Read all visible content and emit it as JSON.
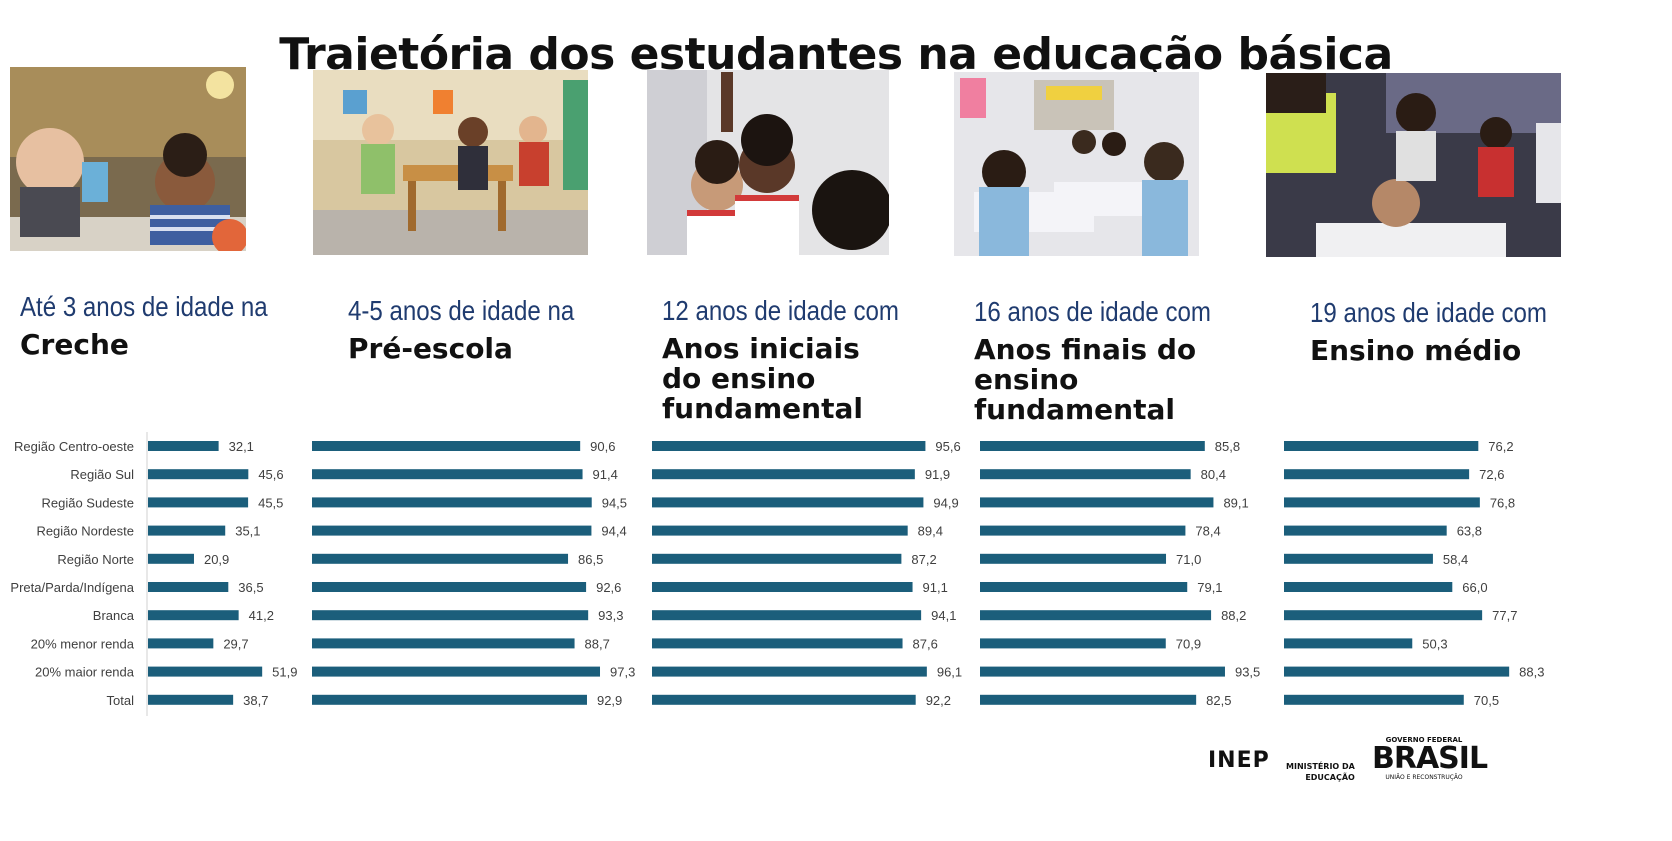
{
  "title": "Trajetória dos estudantes na educação básica",
  "columns": [
    {
      "subtitle": "Até 3 anos de idade na",
      "heading": "Creche",
      "photo": "toddlers-playing-photo"
    },
    {
      "subtitle": "4-5 anos de idade na",
      "heading": "Pré-escola",
      "photo": "preschool-classroom-photo"
    },
    {
      "subtitle": "12 anos de idade com",
      "heading": "Anos iniciais\ndo ensino\nfundamental",
      "photo": "smiling-children-photo"
    },
    {
      "subtitle": "16 anos de idade com",
      "heading": "Anos finais do\nensino\nfundamental",
      "photo": "students-writing-photo"
    },
    {
      "subtitle": "19 anos de idade com",
      "heading": "Ensino médio",
      "photo": "student-exam-photo"
    }
  ],
  "chart_data": {
    "type": "bar",
    "orientation": "horizontal",
    "categories": [
      "Região Centro-oeste",
      "Região Sul",
      "Região Sudeste",
      "Região Nordeste",
      "Região Norte",
      "Preta/Parda/Indígena",
      "Branca",
      "20% menor renda",
      "20% maior renda",
      "Total"
    ],
    "series": [
      {
        "name": "Creche",
        "values": [
          32.1,
          45.6,
          45.5,
          35.1,
          20.9,
          36.5,
          41.2,
          29.7,
          51.9,
          38.7
        ],
        "labels": [
          "32,1",
          "45,6",
          "45,5",
          "35,1",
          "20,9",
          "36,5",
          "41,2",
          "29,7",
          "51,9",
          "38,7"
        ]
      },
      {
        "name": "Pré-escola",
        "values": [
          90.6,
          91.4,
          94.5,
          94.4,
          86.5,
          92.6,
          93.3,
          88.7,
          97.3,
          92.9
        ],
        "labels": [
          "90,6",
          "91,4",
          "94,5",
          "94,4",
          "86,5",
          "92,6",
          "93,3",
          "88,7",
          "97,3",
          "92,9"
        ]
      },
      {
        "name": "Anos iniciais do ensino fundamental",
        "values": [
          95.6,
          91.9,
          94.9,
          89.4,
          87.2,
          91.1,
          94.1,
          87.6,
          96.1,
          92.2
        ],
        "labels": [
          "95,6",
          "91,9",
          "94,9",
          "89,4",
          "87,2",
          "91,1",
          "94,1",
          "87,6",
          "96,1",
          "92,2"
        ]
      },
      {
        "name": "Anos finais do ensino fundamental",
        "values": [
          85.8,
          80.4,
          89.1,
          78.4,
          71.0,
          79.1,
          88.2,
          70.9,
          93.5,
          82.5
        ],
        "labels": [
          "85,8",
          "80,4",
          "89,1",
          "78,4",
          "71,0",
          "79,1",
          "88,2",
          "70,9",
          "93,5",
          "82,5"
        ]
      },
      {
        "name": "Ensino médio",
        "values": [
          76.2,
          72.6,
          76.8,
          63.8,
          58.4,
          66.0,
          77.7,
          50.3,
          88.3,
          70.5
        ],
        "labels": [
          "76,2",
          "72,6",
          "76,8",
          "63,8",
          "58,4",
          "66,0",
          "77,7",
          "50,3",
          "88,3",
          "70,5"
        ]
      }
    ],
    "xlim": [
      0,
      100
    ],
    "bar_color": "#1b5e7b",
    "grid": false,
    "legend": "none"
  },
  "footer": {
    "logo_inep": "INEP",
    "logo_ministerio": "MINISTÉRIO DA\nEDUCAÇÃO",
    "logo_gov_top": "GOVERNO FEDERAL",
    "logo_gov_main": "BRASIL",
    "logo_gov_bottom": "UNIÃO E RECONSTRUÇÃO"
  },
  "colors": {
    "bar": "#1b5e7b",
    "subtitle": "#1f3b6f",
    "heading": "#111111"
  }
}
